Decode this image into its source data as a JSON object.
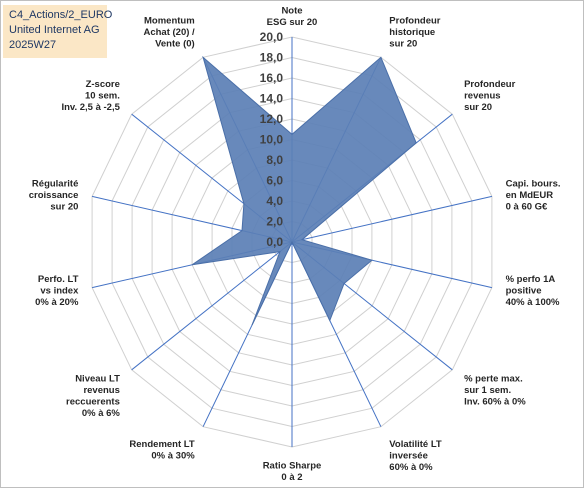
{
  "header": {
    "line1": "C4_Actions/2_EURO",
    "line2": "United Internet AG",
    "line3": "2025W27"
  },
  "chart_data": {
    "type": "radar",
    "rlim": [
      0,
      20
    ],
    "tick_step": 2,
    "tick_labels": [
      "0,0",
      "2,0",
      "4,0",
      "6,0",
      "8,0",
      "10,0",
      "12,0",
      "14,0",
      "16,0",
      "18,0",
      "20,0"
    ],
    "grid": true,
    "fill_color": "#5b7fb5",
    "axis_color": "#4472c4",
    "grid_color": "#d0d0d0",
    "axes": [
      {
        "label": [
          "Note",
          "ESG sur 20"
        ],
        "value": 10.5
      },
      {
        "label": [
          "Profondeur",
          "historique",
          "sur 20"
        ],
        "value": 20.0
      },
      {
        "label": [
          "Profondeur",
          "revenus",
          "sur 20"
        ],
        "value": 15.5
      },
      {
        "label": [
          "Capi. bours.",
          "en MdEUR",
          "0 à 60 G€"
        ],
        "value": 1.0
      },
      {
        "label": [
          "% perfo 1A",
          "positive",
          "40% à 100%"
        ],
        "value": 8.0
      },
      {
        "label": [
          "% perte max.",
          "sur 1 sem.",
          "Inv. 60% à 0%"
        ],
        "value": 6.5
      },
      {
        "label": [
          "Volatilité LT",
          "inversée",
          "60% à 0%"
        ],
        "value": 8.5
      },
      {
        "label": [
          "Ratio Sharpe",
          "0 à 2"
        ],
        "value": 0.0
      },
      {
        "label": [
          "Rendement LT",
          "0% à 30%"
        ],
        "value": 9.0
      },
      {
        "label": [
          "Niveau LT",
          "revenus",
          "reccuerents",
          "0% à 6%"
        ],
        "value": 1.5
      },
      {
        "label": [
          "Perfo. LT",
          "vs index",
          "0% à 20%"
        ],
        "value": 10.0
      },
      {
        "label": [
          "Régularité",
          "croissance",
          "sur 20"
        ],
        "value": 5.0
      },
      {
        "label": [
          "Z-score",
          "10 sem.",
          "Inv. 2,5 à -2,5"
        ],
        "value": 6.0
      },
      {
        "label": [
          "Momentum",
          "Achat (20) /",
          "Vente (0)"
        ],
        "value": 20.0
      }
    ]
  }
}
